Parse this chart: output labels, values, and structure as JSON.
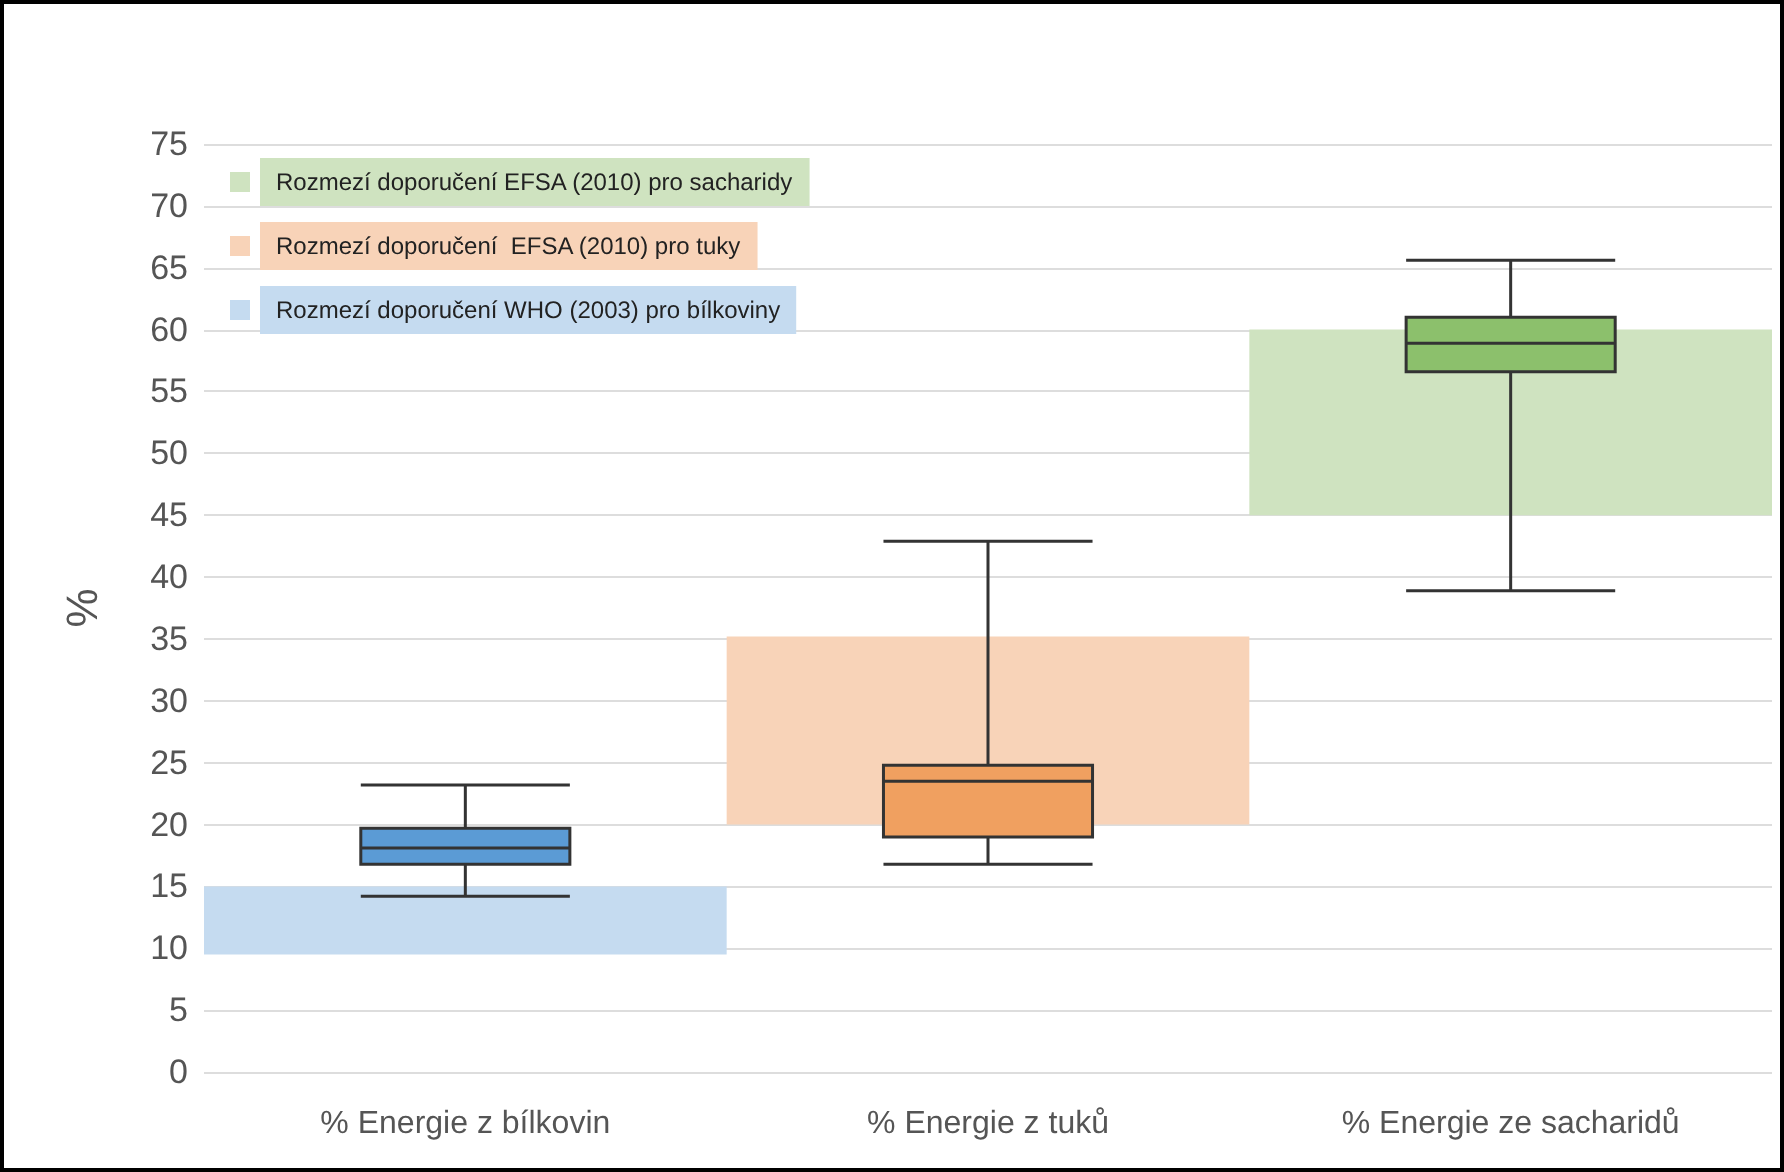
{
  "chart_data": {
    "type": "box",
    "ylabel": "%",
    "categories": [
      "% Energie z bílkovin",
      "% Energie z tuků",
      "% Energie ze sacharidů"
    ],
    "series": [
      {
        "colors": [
          "#5b9bd5",
          "#f0a060",
          "#8cc06c"
        ],
        "boxes": [
          {
            "low": 14.2,
            "q1": 16.8,
            "median": 18.1,
            "q3": 19.7,
            "high": 23.2
          },
          {
            "low": 16.8,
            "q1": 19.0,
            "median": 23.5,
            "q3": 24.8,
            "high": 42.9
          },
          {
            "low": 38.9,
            "q1": 56.6,
            "median": 58.9,
            "q3": 61.0,
            "high": 65.6
          }
        ]
      }
    ],
    "bands": [
      {
        "axis": "y",
        "from": 9.5,
        "to": 15,
        "label": "Rozmezí doporučení WHO (2003) pro bílkoviny",
        "color": "#c5dbf0"
      },
      {
        "axis": "y",
        "from": 20,
        "to": 35.2,
        "label": "Rozmezí doporučení  EFSA (2010) pro tuky",
        "color": "#f8d3b8"
      },
      {
        "axis": "y",
        "from": 45,
        "to": 60,
        "label": "Rozmezí doporučení EFSA (2010) pro sacharidy",
        "color": "#cfe3c0"
      }
    ],
    "ylim": [
      0,
      75
    ],
    "yticks": [
      0,
      5,
      10,
      15,
      20,
      25,
      30,
      35,
      40,
      45,
      50,
      55,
      60,
      65,
      70,
      75
    ],
    "grid": "y",
    "legend": "top left"
  }
}
